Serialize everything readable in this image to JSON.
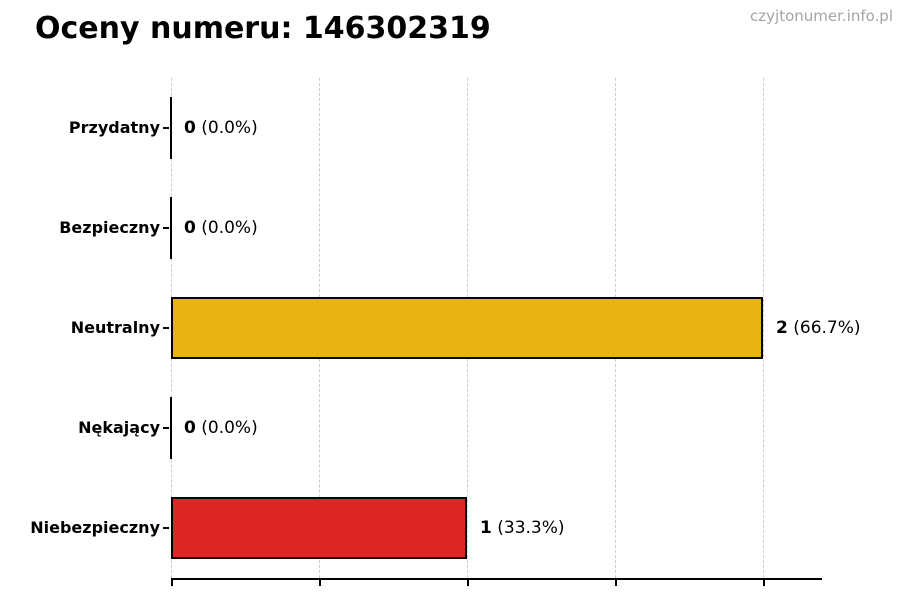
{
  "header": {
    "title": "Oceny numeru: 146302319",
    "watermark": "czyjtonumer.info.pl"
  },
  "chart_data": {
    "type": "bar",
    "orientation": "horizontal",
    "title": "Oceny numeru: 146302319",
    "categories": [
      "Przydatny",
      "Bezpieczny",
      "Neutralny",
      "Nękający",
      "Niebezpieczny"
    ],
    "values": [
      0,
      0,
      2,
      0,
      1
    ],
    "percent_labels": [
      "0.0%",
      "0.0%",
      "66.7%",
      "0.0%",
      "33.3%"
    ],
    "value_labels": [
      "0 (0.0%)",
      "0 (0.0%)",
      "2 (66.7%)",
      "0 (0.0%)",
      "1 (33.3%)"
    ],
    "bar_colors": [
      null,
      null,
      "#e8b412",
      null,
      "#dd2626"
    ],
    "xlim": [
      0,
      2.2
    ],
    "x_gridlines": [
      0,
      0.5,
      1.0,
      1.5,
      2.0
    ],
    "grid": "vertical-dashed",
    "legend": "none",
    "xlabel": "",
    "ylabel": "",
    "colors": {
      "bar_border": "#000000",
      "zero_bar": "#000000",
      "gridline": "#cccccc",
      "axis": "#000000",
      "title": "#000000",
      "watermark": "#a5a5a5"
    }
  }
}
